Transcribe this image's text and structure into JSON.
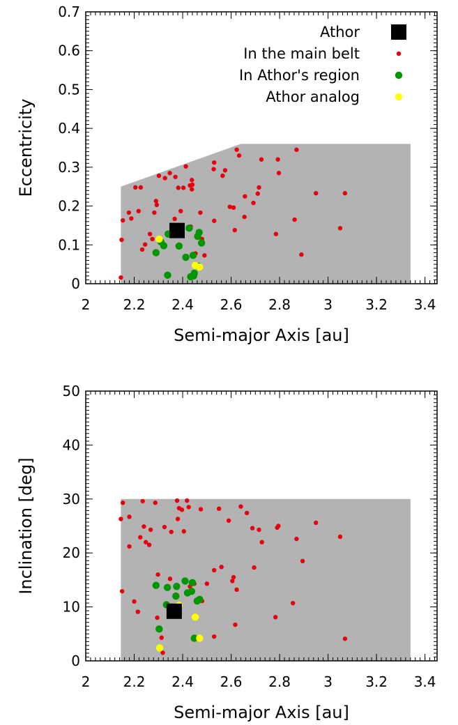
{
  "chart_data": [
    {
      "type": "scatter",
      "xlabel": "Semi-major Axis [au]",
      "ylabel": "Eccentricity",
      "xlim": [
        2.0,
        3.45
      ],
      "ylim": [
        0,
        0.7
      ],
      "x_ticks": [
        "2",
        "2.2",
        "2.4",
        "2.6",
        "2.8",
        "3",
        "3.2",
        "3.4"
      ],
      "y_ticks": [
        "0",
        "0.1",
        "0.2",
        "0.3",
        "0.4",
        "0.5",
        "0.6",
        "0.7"
      ],
      "legend_position": "top-right",
      "region": {
        "color": "#b3b3b3",
        "polygon": [
          [
            2.145,
            0.0
          ],
          [
            2.145,
            0.25
          ],
          [
            2.64,
            0.36
          ],
          [
            3.34,
            0.36
          ],
          [
            3.34,
            0.0
          ]
        ]
      },
      "series": [
        {
          "name": "Athor",
          "color": "#000000",
          "marker": "square",
          "points": [
            [
              2.377,
              0.137
            ]
          ]
        },
        {
          "name": "In the main belt",
          "color": "#e8000b",
          "marker": "small-dot",
          "points": [
            [
              2.145,
              0.016
            ],
            [
              2.148,
              0.113
            ],
            [
              2.153,
              0.163
            ],
            [
              2.178,
              0.183
            ],
            [
              2.188,
              0.168
            ],
            [
              2.205,
              0.248
            ],
            [
              2.227,
              0.248
            ],
            [
              2.218,
              0.187
            ],
            [
              2.233,
              0.088
            ],
            [
              2.245,
              0.101
            ],
            [
              2.265,
              0.128
            ],
            [
              2.275,
              0.115
            ],
            [
              2.283,
              0.183
            ],
            [
              2.29,
              0.213
            ],
            [
              2.293,
              0.203
            ],
            [
              2.302,
              0.278
            ],
            [
              2.327,
              0.272
            ],
            [
              2.347,
              0.285
            ],
            [
              2.37,
              0.275
            ],
            [
              2.382,
              0.247
            ],
            [
              2.367,
              0.167
            ],
            [
              2.392,
              0.187
            ],
            [
              2.403,
              0.247
            ],
            [
              2.413,
              0.302
            ],
            [
              2.43,
              0.253
            ],
            [
              2.438,
              0.243
            ],
            [
              2.438,
              0.267
            ],
            [
              2.44,
              0.255
            ],
            [
              2.433,
              0.147
            ],
            [
              2.453,
              0.078
            ],
            [
              2.473,
              0.183
            ],
            [
              2.48,
              0.115
            ],
            [
              2.49,
              0.073
            ],
            [
              2.53,
              0.162
            ],
            [
              2.528,
              0.295
            ],
            [
              2.53,
              0.312
            ],
            [
              2.565,
              0.278
            ],
            [
              2.575,
              0.292
            ],
            [
              2.595,
              0.198
            ],
            [
              2.61,
              0.196
            ],
            [
              2.615,
              0.138
            ],
            [
              2.623,
              0.345
            ],
            [
              2.633,
              0.33
            ],
            [
              2.655,
              0.172
            ],
            [
              2.657,
              0.225
            ],
            [
              2.692,
              0.208
            ],
            [
              2.71,
              0.232
            ],
            [
              2.715,
              0.248
            ],
            [
              2.725,
              0.32
            ],
            [
              2.785,
              0.128
            ],
            [
              2.793,
              0.32
            ],
            [
              2.797,
              0.285
            ],
            [
              2.862,
              0.165
            ],
            [
              2.87,
              0.345
            ],
            [
              2.89,
              0.075
            ],
            [
              2.95,
              0.233
            ],
            [
              3.05,
              0.143
            ],
            [
              3.07,
              0.233
            ]
          ]
        },
        {
          "name": "In Athor's region",
          "color": "#009600",
          "marker": "dot",
          "points": [
            [
              2.29,
              0.08
            ],
            [
              2.31,
              0.108
            ],
            [
              2.322,
              0.098
            ],
            [
              2.338,
              0.022
            ],
            [
              2.34,
              0.128
            ],
            [
              2.368,
              0.127
            ],
            [
              2.385,
              0.097
            ],
            [
              2.39,
              0.128
            ],
            [
              2.413,
              0.068
            ],
            [
              2.427,
              0.143
            ],
            [
              2.433,
              0.018
            ],
            [
              2.443,
              0.073
            ],
            [
              2.445,
              0.02
            ],
            [
              2.448,
              0.027
            ],
            [
              2.462,
              0.122
            ],
            [
              2.468,
              0.132
            ],
            [
              2.478,
              0.105
            ],
            [
              2.465,
              0.045
            ]
          ]
        },
        {
          "name": "Athor analog",
          "color": "#ffff00",
          "marker": "dot",
          "points": [
            [
              2.303,
              0.115
            ],
            [
              2.392,
              0.147
            ],
            [
              2.452,
              0.047
            ],
            [
              2.47,
              0.043
            ]
          ]
        }
      ]
    },
    {
      "type": "scatter",
      "xlabel": "Semi-major Axis [au]",
      "ylabel": "Inclination [deg]",
      "xlim": [
        2.0,
        3.45
      ],
      "ylim": [
        0,
        50
      ],
      "x_ticks": [
        "2",
        "2.2",
        "2.4",
        "2.6",
        "2.8",
        "3",
        "3.2",
        "3.4"
      ],
      "y_ticks": [
        "0",
        "10",
        "20",
        "30",
        "40",
        "50"
      ],
      "region": {
        "color": "#b3b3b3",
        "polygon": [
          [
            2.145,
            0.0
          ],
          [
            2.145,
            30.0
          ],
          [
            3.34,
            30.0
          ],
          [
            3.34,
            0.0
          ]
        ]
      },
      "series": [
        {
          "name": "Athor",
          "color": "#000000",
          "marker": "square",
          "points": [
            [
              2.365,
              9.2
            ]
          ]
        },
        {
          "name": "In the main belt",
          "color": "#e8000b",
          "marker": "small-dot",
          "points": [
            [
              2.145,
              26.3
            ],
            [
              2.153,
              29.3
            ],
            [
              2.15,
              12.9
            ],
            [
              2.18,
              21.2
            ],
            [
              2.18,
              26.7
            ],
            [
              2.2,
              11.0
            ],
            [
              2.215,
              9.1
            ],
            [
              2.225,
              22.9
            ],
            [
              2.235,
              29.6
            ],
            [
              2.24,
              24.9
            ],
            [
              2.248,
              22.0
            ],
            [
              2.262,
              21.5
            ],
            [
              2.268,
              24.3
            ],
            [
              2.287,
              29.3
            ],
            [
              2.295,
              8.0
            ],
            [
              2.298,
              16.0
            ],
            [
              2.313,
              4.3
            ],
            [
              2.318,
              1.5
            ],
            [
              2.325,
              24.8
            ],
            [
              2.348,
              15.2
            ],
            [
              2.353,
              23.9
            ],
            [
              2.377,
              29.7
            ],
            [
              2.38,
              26.3
            ],
            [
              2.385,
              28.3
            ],
            [
              2.397,
              28.0
            ],
            [
              2.405,
              24.0
            ],
            [
              2.418,
              29.7
            ],
            [
              2.425,
              28.5
            ],
            [
              2.43,
              13.8
            ],
            [
              2.448,
              14.3
            ],
            [
              2.475,
              28.1
            ],
            [
              2.48,
              11.1
            ],
            [
              2.5,
              14.3
            ],
            [
              2.53,
              16.8
            ],
            [
              2.53,
              4.5
            ],
            [
              2.55,
              28.2
            ],
            [
              2.56,
              17.4
            ],
            [
              2.59,
              26.0
            ],
            [
              2.605,
              14.8
            ],
            [
              2.61,
              15.5
            ],
            [
              2.617,
              6.7
            ],
            [
              2.623,
              13.2
            ],
            [
              2.64,
              28.6
            ],
            [
              2.665,
              27.4
            ],
            [
              2.688,
              24.6
            ],
            [
              2.695,
              17.3
            ],
            [
              2.715,
              24.3
            ],
            [
              2.727,
              22.0
            ],
            [
              2.783,
              8.1
            ],
            [
              2.79,
              24.7
            ],
            [
              2.795,
              25.0
            ],
            [
              2.855,
              10.7
            ],
            [
              2.87,
              22.6
            ],
            [
              2.895,
              18.5
            ],
            [
              2.95,
              25.6
            ],
            [
              3.05,
              23.0
            ],
            [
              3.07,
              4.1
            ]
          ]
        },
        {
          "name": "In Athor's region",
          "color": "#009600",
          "marker": "dot",
          "points": [
            [
              2.29,
              14.0
            ],
            [
              2.303,
              5.9
            ],
            [
              2.333,
              10.4
            ],
            [
              2.337,
              13.6
            ],
            [
              2.372,
              12.0
            ],
            [
              2.375,
              13.8
            ],
            [
              2.41,
              14.8
            ],
            [
              2.42,
              12.6
            ],
            [
              2.437,
              12.9
            ],
            [
              2.44,
              14.5
            ],
            [
              2.46,
              11.1
            ],
            [
              2.47,
              11.4
            ],
            [
              2.448,
              4.2
            ]
          ]
        },
        {
          "name": "Athor analog",
          "color": "#ffff00",
          "marker": "dot",
          "points": [
            [
              2.305,
              2.4
            ],
            [
              2.385,
              10.3
            ],
            [
              2.452,
              8.1
            ],
            [
              2.47,
              4.2
            ]
          ]
        }
      ]
    }
  ]
}
